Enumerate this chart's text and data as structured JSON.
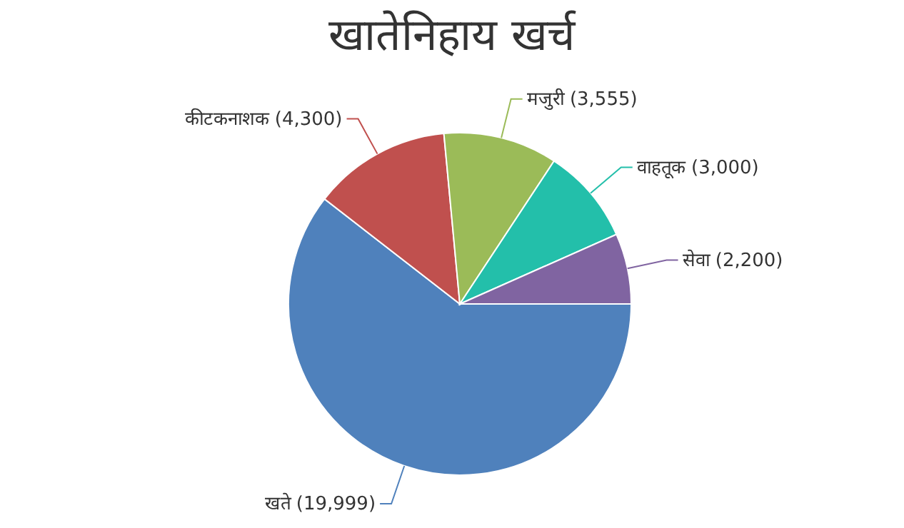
{
  "chart_data": {
    "type": "pie",
    "title": "खातेनिहाय खर्च",
    "categories": [
      "खते",
      "कीटकनाशक",
      "मजुरी",
      "वाहतूक",
      "सेवा"
    ],
    "values": [
      19999,
      4300,
      3555,
      3000,
      2200
    ],
    "colors": [
      "#4f81bc",
      "#c0504e",
      "#9bbb58",
      "#23bfaa",
      "#8064a1"
    ],
    "value_labels": [
      "(19,999)",
      "(4,300)",
      "(3,555)",
      "(3,000)",
      "(2,200)"
    ],
    "legend": false
  }
}
